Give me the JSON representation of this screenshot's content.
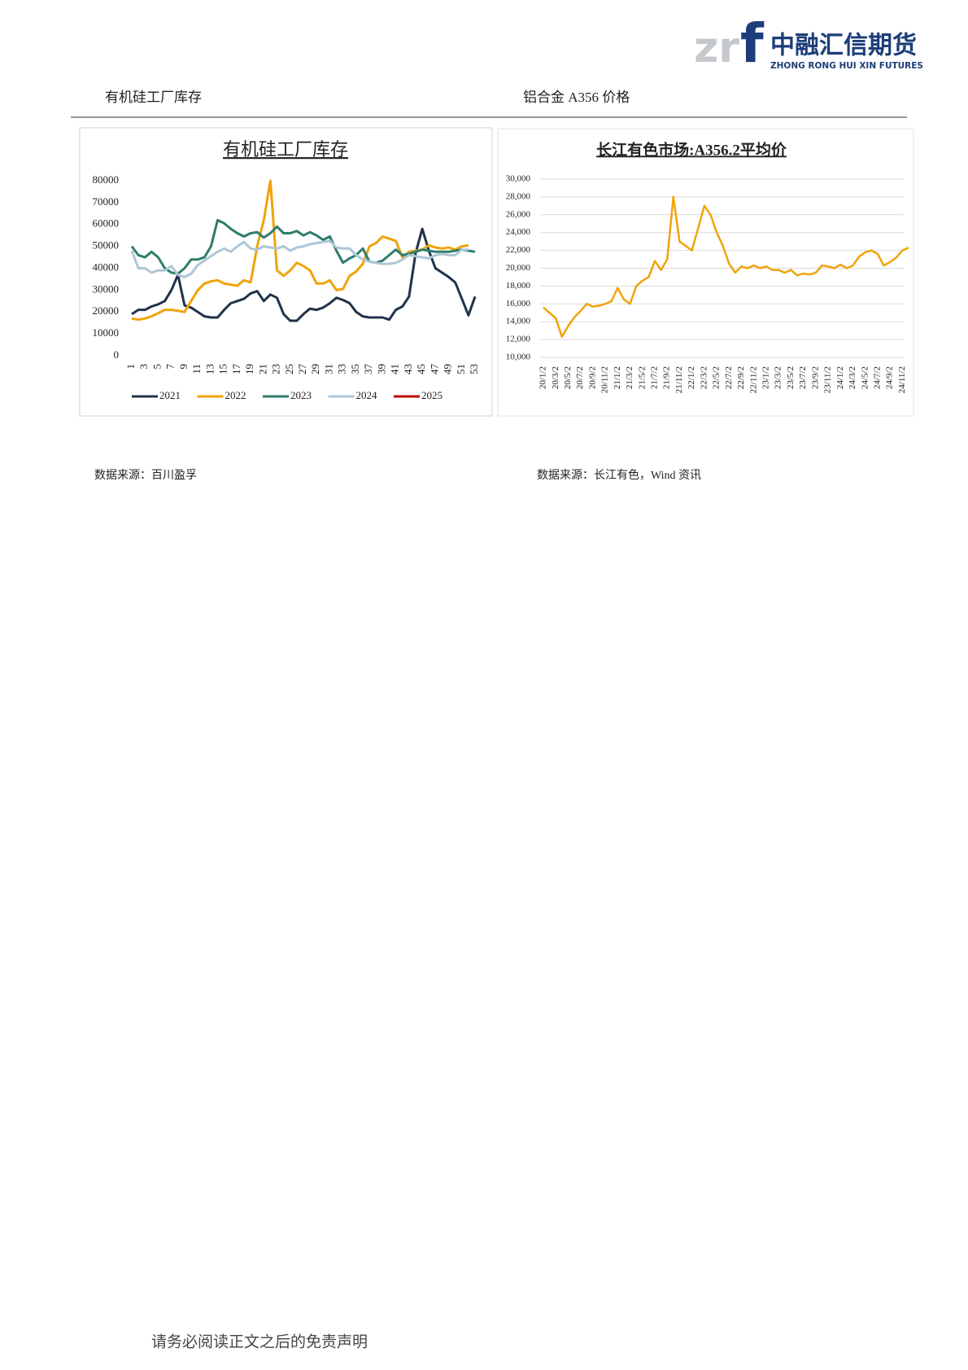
{
  "header": {
    "logo_letters": [
      "zr",
      "f"
    ],
    "company_cn": "中融汇信期货",
    "company_en": "ZHONG RONG HUI XIN FUTURES"
  },
  "sections": [
    {
      "title": "有机硅工厂库存",
      "source": "数据来源：百川盈孚"
    },
    {
      "title": "铝合金 A356 价格",
      "source": "数据来源：长江有色，Wind 资讯"
    }
  ],
  "chart_data": [
    {
      "type": "line",
      "title": "有机硅工厂库存",
      "categories": [
        1,
        null,
        3,
        null,
        5,
        null,
        7,
        null,
        9,
        null,
        11,
        null,
        13,
        null,
        15,
        null,
        17,
        null,
        19,
        null,
        21,
        null,
        23,
        null,
        25,
        null,
        27,
        null,
        29,
        null,
        31,
        null,
        33,
        null,
        35,
        null,
        37,
        null,
        39,
        null,
        41,
        null,
        43,
        null,
        45,
        null,
        47,
        null,
        49,
        null,
        51,
        null,
        53
      ],
      "ylim": [
        0,
        80000
      ],
      "yticks": [
        0,
        10000,
        20000,
        30000,
        40000,
        50000,
        60000,
        70000,
        80000
      ],
      "grid": false,
      "legend": "bottom",
      "series": [
        {
          "name": "2021",
          "color": "#1f3349",
          "values": [
            19000,
            21000,
            21000,
            22500,
            23500,
            25000,
            30000,
            37000,
            23000,
            22000,
            20000,
            18000,
            17500,
            17500,
            21000,
            24000,
            25000,
            26000,
            28500,
            29500,
            25000,
            28000,
            26500,
            19000,
            16000,
            16000,
            19000,
            21500,
            21000,
            22000,
            24000,
            26500,
            25500,
            24000,
            20000,
            18000,
            17500,
            17500,
            17500,
            16500,
            21000,
            22500,
            27000,
            47000,
            58000,
            48000,
            40000,
            38000,
            36000,
            33500,
            26000,
            18500,
            27000
          ]
        },
        {
          "name": "2022",
          "color": "#f0a30a",
          "values": [
            17000,
            16500,
            17000,
            18000,
            19500,
            21000,
            21000,
            20500,
            20000,
            25000,
            30000,
            33000,
            34000,
            34500,
            33000,
            32500,
            32000,
            34500,
            33500,
            50000,
            62000,
            80000,
            39000,
            36500,
            39000,
            42500,
            41000,
            39000,
            33000,
            33000,
            34500,
            30000,
            30500,
            36500,
            38500,
            42000,
            50000,
            51500,
            54500,
            53500,
            52500,
            45000,
            47500,
            48000,
            48500,
            50500,
            49500,
            49000,
            49500,
            48500,
            50000,
            50500,
            null
          ]
        },
        {
          "name": "2023",
          "color": "#2e7d6b",
          "values": [
            50000,
            46000,
            45000,
            47500,
            45000,
            40000,
            38000,
            37500,
            40000,
            44000,
            44000,
            45000,
            50000,
            62000,
            60500,
            58000,
            56000,
            54500,
            56000,
            56500,
            54000,
            56000,
            59000,
            56000,
            56000,
            57000,
            55000,
            56500,
            55000,
            53000,
            54500,
            48000,
            42500,
            44500,
            46000,
            49000,
            43000,
            42500,
            43500,
            46000,
            48500,
            46000,
            46500,
            47500,
            48500,
            48000,
            47500,
            47500,
            47500,
            48000,
            48500,
            48000,
            47500
          ]
        },
        {
          "name": "2024",
          "color": "#aec6d6",
          "values": [
            48000,
            40000,
            40000,
            38000,
            39000,
            39000,
            41000,
            37000,
            36000,
            37500,
            41500,
            43500,
            45500,
            47500,
            49000,
            47500,
            50000,
            52000,
            49000,
            48500,
            50000,
            49500,
            49000,
            50000,
            48000,
            49500,
            50000,
            51000,
            51500,
            52000,
            52500,
            49500,
            49000,
            49000,
            46000,
            44000,
            43000,
            42500,
            42000,
            42000,
            42500,
            44000,
            46000,
            45500,
            45000,
            44500,
            46000,
            46500,
            46000,
            46000,
            48500,
            48500,
            null
          ]
        },
        {
          "name": "2025",
          "color": "#c00000",
          "values": [
            null,
            null,
            null,
            null,
            null,
            null,
            null,
            null,
            null,
            null,
            null,
            null,
            null,
            null,
            null,
            null,
            null,
            null,
            null,
            null,
            null,
            null,
            null,
            null,
            null,
            null,
            null,
            null,
            null,
            null,
            null,
            null,
            null,
            null,
            null,
            null,
            null,
            null,
            null,
            null,
            null,
            null,
            null,
            null,
            null,
            null,
            null,
            null,
            null,
            null,
            null,
            null,
            null
          ]
        }
      ]
    },
    {
      "type": "line",
      "title": "长江有色市场:A356.2平均价",
      "x": [
        "20/1/2",
        "20/2/2",
        "20/3/2",
        "20/4/2",
        "20/5/2",
        "20/6/2",
        "20/7/2",
        "20/8/2",
        "20/9/2",
        "20/10/2",
        "20/11/2",
        "20/12/2",
        "21/1/2",
        "21/2/2",
        "21/3/2",
        "21/4/2",
        "21/5/2",
        "21/6/2",
        "21/7/2",
        "21/8/2",
        "21/9/2",
        "21/10/2",
        "21/11/2",
        "21/12/2",
        "22/1/2",
        "22/2/2",
        "22/3/2",
        "22/4/2",
        "22/5/2",
        "22/6/2",
        "22/7/2",
        "22/8/2",
        "22/9/2",
        "22/10/2",
        "22/11/2",
        "22/12/2",
        "23/1/2",
        "23/2/2",
        "23/3/2",
        "23/4/2",
        "23/5/2",
        "23/6/2",
        "23/7/2",
        "23/8/2",
        "23/9/2",
        "23/10/2",
        "23/11/2",
        "23/12/2",
        "24/1/2",
        "24/2/2",
        "24/3/2",
        "24/4/2",
        "24/5/2",
        "24/6/2",
        "24/7/2",
        "24/8/2",
        "24/9/2",
        "24/10/2",
        "24/11/2",
        "24/12/2"
      ],
      "xticks": [
        "20/1/2",
        "20/3/2",
        "20/5/2",
        "20/7/2",
        "20/9/2",
        "20/11/2",
        "21/1/2",
        "21/3/2",
        "21/5/2",
        "21/7/2",
        "21/9/2",
        "21/11/2",
        "22/1/2",
        "22/3/2",
        "22/5/2",
        "22/7/2",
        "22/9/2",
        "22/11/2",
        "23/1/2",
        "23/3/2",
        "23/5/2",
        "23/7/2",
        "23/9/2",
        "23/11/2",
        "24/1/2",
        "24/3/2",
        "24/5/2",
        "24/7/2",
        "24/9/2",
        "24/11/2"
      ],
      "ylim": [
        10000,
        30000
      ],
      "yticks": [
        {
          "value": 10000,
          "label": "10,000"
        },
        {
          "value": 12000,
          "label": "12,000"
        },
        {
          "value": 14000,
          "label": "14,000"
        },
        {
          "value": 16000,
          "label": "16,000"
        },
        {
          "value": 18000,
          "label": "18,000"
        },
        {
          "value": 20000,
          "label": "20,000"
        },
        {
          "value": 22000,
          "label": "22,000"
        },
        {
          "value": 24000,
          "label": "24,000"
        },
        {
          "value": 26000,
          "label": "26,000"
        },
        {
          "value": 28000,
          "label": "28,000"
        },
        {
          "value": 30000,
          "label": "30,000"
        }
      ],
      "grid": true,
      "color": "#f0a30a",
      "values": [
        15600,
        15000,
        14400,
        12300,
        13500,
        14500,
        15200,
        16000,
        15700,
        15800,
        16000,
        16300,
        17800,
        16500,
        16000,
        18000,
        18600,
        19000,
        20800,
        19800,
        21000,
        28000,
        23000,
        22500,
        22000,
        24500,
        27000,
        26000,
        24000,
        22500,
        20500,
        19500,
        20200,
        20000,
        20300,
        20000,
        20200,
        19800,
        19800,
        19500,
        19800,
        19200,
        19400,
        19300,
        19500,
        20300,
        20200,
        20000,
        20400,
        20000,
        20300,
        21300,
        21800,
        22000,
        21600,
        20300,
        20700,
        21200,
        22000,
        22300
      ]
    }
  ],
  "footer": {
    "disclaimer": "请务必阅读正文之后的免责声明"
  }
}
